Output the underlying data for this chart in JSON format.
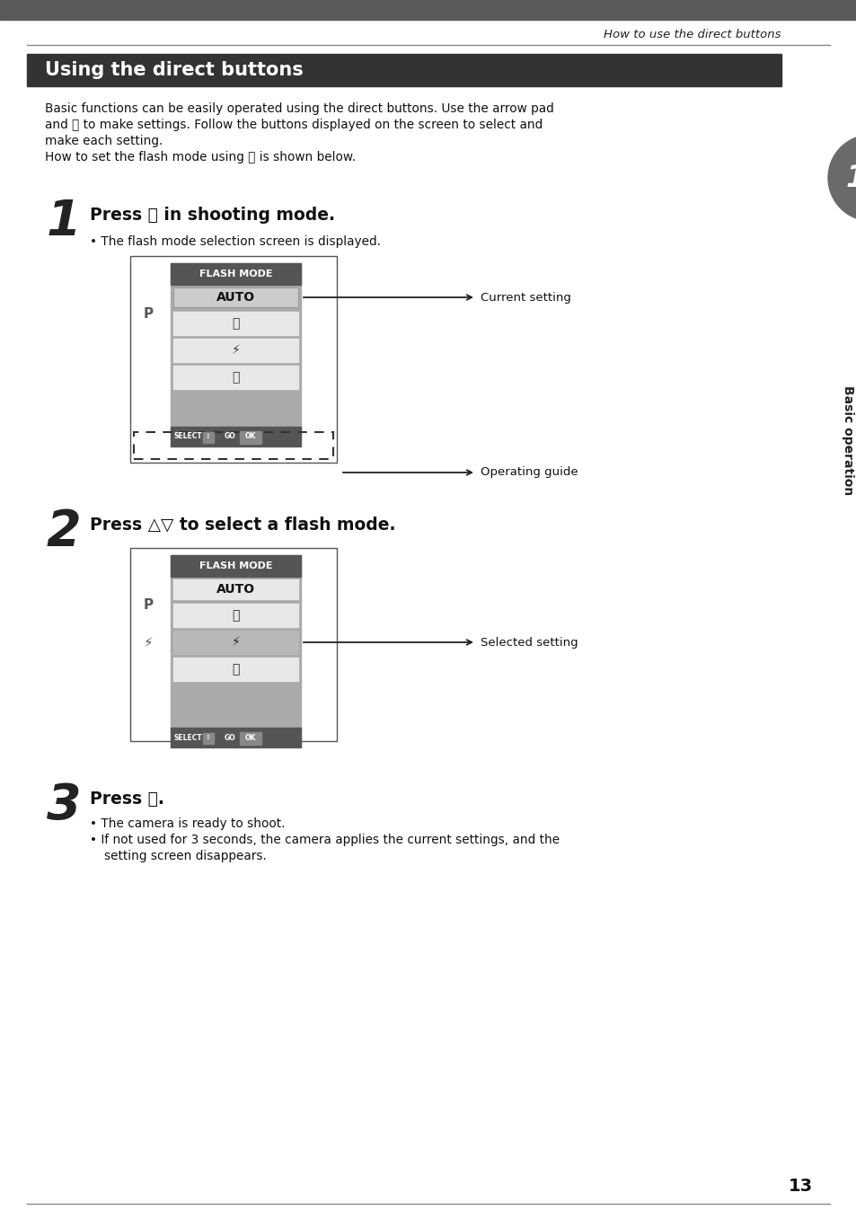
{
  "page_title": "How to use the direct buttons",
  "section_title": "Using the direct buttons",
  "step1_num": "1",
  "step1_head_parts": [
    "Press ",
    "Ⓓ",
    " in shooting mode."
  ],
  "step1_bullet": "The flash mode selection screen is displayed.",
  "step2_num": "2",
  "step2_head": "Press △▽ to select a flash mode.",
  "step3_num": "3",
  "step3_head_parts": [
    "Press ",
    "Ⓞ",
    "."
  ],
  "step3_b1": "The camera is ready to shoot.",
  "step3_b2a": "If not used for 3 seconds, the camera applies the current settings, and the",
  "step3_b2b": "setting screen disappears.",
  "intro_l1": "Basic functions can be easily operated using the direct buttons. Use the arrow pad",
  "intro_l2": "and Ⓞ to make settings. Follow the buttons displayed on the screen to select and",
  "intro_l3": "make each setting.",
  "intro_l4": "How to set the flash mode using Ⓓ is shown below.",
  "label_current": "Current setting",
  "label_operating": "Operating guide",
  "label_selected": "Selected setting",
  "page_num": "13",
  "sidebar_text": "Basic operation",
  "header_bar_color": "#5a5a5a",
  "section_bar_color": "#333333",
  "bg_color": "#ffffff",
  "sidebar_circle_color": "#6a6a6a",
  "panel_bg": "#aaaaaa",
  "panel_dark": "#555555",
  "panel_light": "#cccccc",
  "panel_white": "#e8e8e8"
}
